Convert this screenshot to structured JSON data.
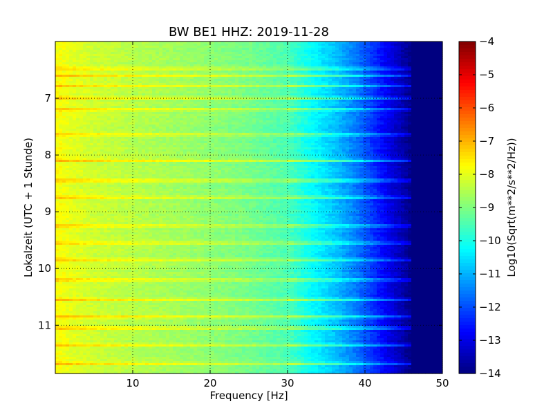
{
  "chart_data": {
    "type": "heatmap",
    "title": "BW BE1 HHZ: 2019-11-28",
    "xlabel": "Frequency [Hz]",
    "ylabel": "Lokalzeit (UTC + 1 Stunde)",
    "colorbar_label": "Log10(Sqrt(m**2/s**2/Hz))",
    "xlim": [
      0,
      50
    ],
    "ylim": [
      6.0,
      11.85
    ],
    "y_inverted": true,
    "x_ticks": [
      10,
      20,
      30,
      40,
      50
    ],
    "x_tick_labels": [
      "10",
      "20",
      "30",
      "40",
      "50"
    ],
    "y_ticks": [
      7,
      8,
      9,
      10,
      11
    ],
    "y_tick_labels": [
      "7",
      "8",
      "9",
      "10",
      "11"
    ],
    "color_range": [
      -14,
      -4
    ],
    "colorbar_ticks": [
      -4,
      -5,
      -6,
      -7,
      -8,
      -9,
      -10,
      -11,
      -12,
      -13,
      -14
    ],
    "colorbar_tick_labels": [
      "−4",
      "−5",
      "−6",
      "−7",
      "−8",
      "−9",
      "−10",
      "−11",
      "−12",
      "−13",
      "−14"
    ],
    "colormap": "jet",
    "grid": true,
    "freq_profile": [
      {
        "freq": 0.5,
        "value": -7.8
      },
      {
        "freq": 2,
        "value": -8.0
      },
      {
        "freq": 5,
        "value": -8.25
      },
      {
        "freq": 10,
        "value": -8.45
      },
      {
        "freq": 15,
        "value": -8.65
      },
      {
        "freq": 20,
        "value": -8.85
      },
      {
        "freq": 25,
        "value": -9.1
      },
      {
        "freq": 30,
        "value": -9.5
      },
      {
        "freq": 33,
        "value": -10.2
      },
      {
        "freq": 36,
        "value": -10.8
      },
      {
        "freq": 39,
        "value": -11.6
      },
      {
        "freq": 42,
        "value": -12.6
      },
      {
        "freq": 45,
        "value": -13.6
      },
      {
        "freq": 46,
        "value": -14.0
      },
      {
        "freq": 50,
        "value": -14.0
      }
    ],
    "high_noise_times": [
      6.48,
      6.6,
      6.78,
      7.0,
      7.2,
      7.64,
      8.1,
      8.45,
      8.75,
      9.25,
      9.55,
      9.85,
      10.2,
      10.55,
      10.85,
      11.05,
      11.35,
      11.68
    ]
  }
}
